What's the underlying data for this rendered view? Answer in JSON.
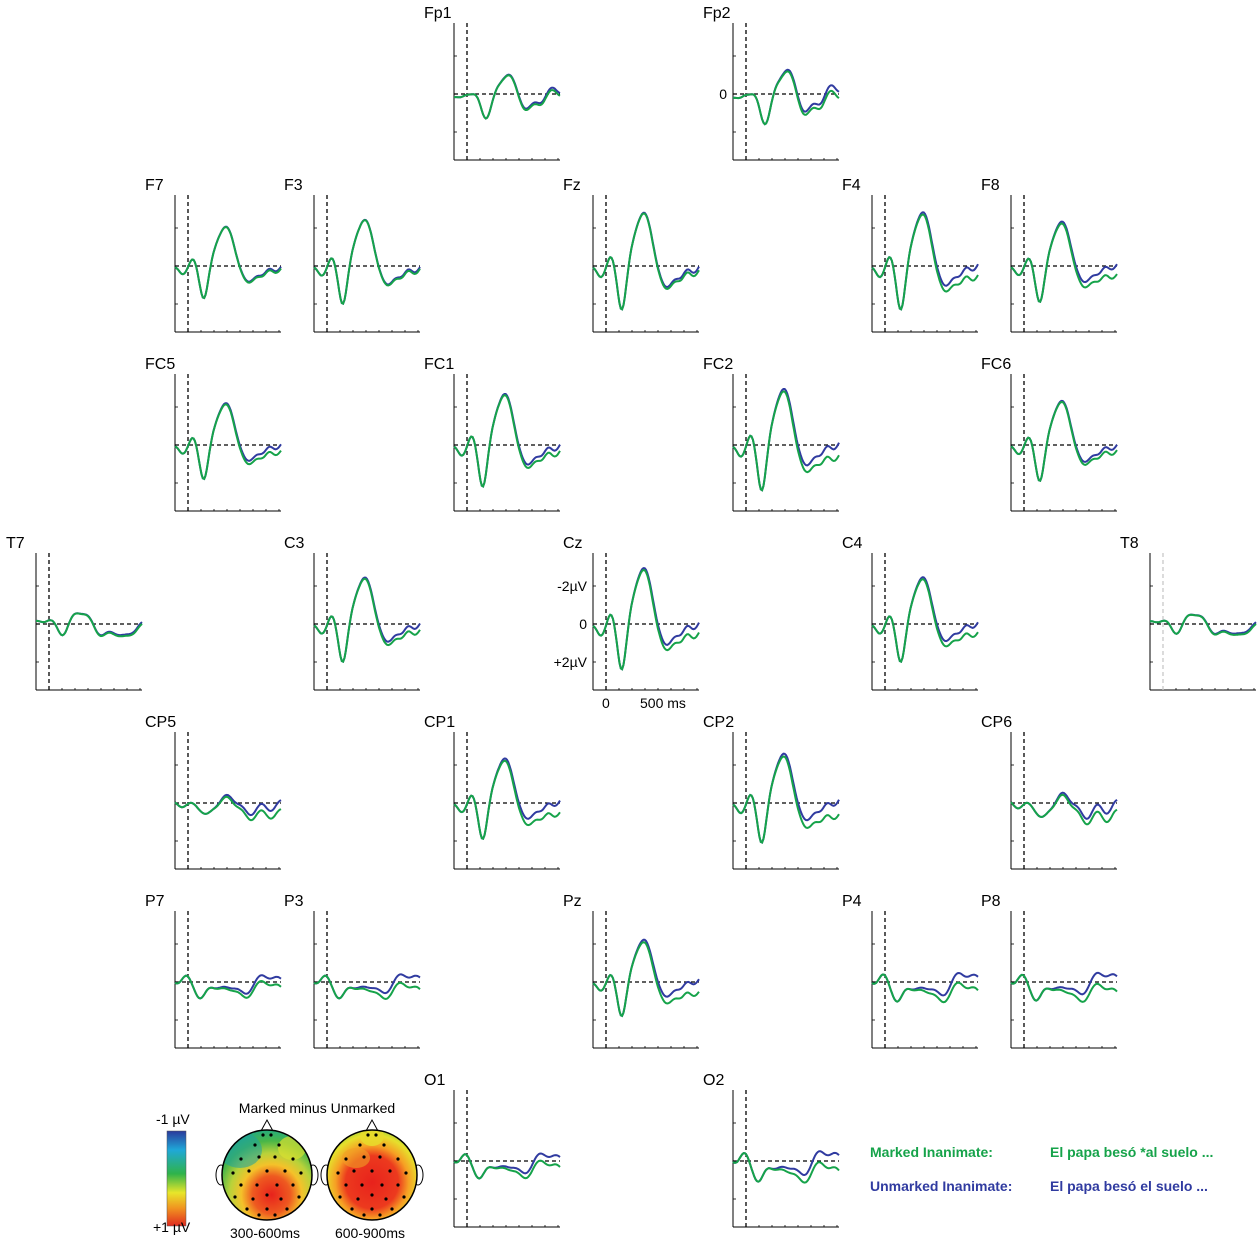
{
  "chart_data": {
    "type": "line",
    "colors": {
      "marked": "#16a34a",
      "unmarked": "#303ba0"
    },
    "series": [
      {
        "key": "marked",
        "name": "Marked Inanimate:",
        "sentence": "El papa besó *al suelo ..."
      },
      {
        "key": "unmarked",
        "name": "Unmarked Inanimate:",
        "sentence": "El papa besó el suelo ..."
      }
    ],
    "axes": {
      "y_ticks": [
        "-2µV",
        "0",
        "+2µV"
      ],
      "y_zero_label": "0",
      "x_ticks": [
        "0",
        "500 ms"
      ],
      "note": "negative up"
    },
    "topomap": {
      "title": "Marked minus Unmarked",
      "scale_top": "-1 µV",
      "scale_bottom": "+1 µV",
      "windows": [
        "300-600ms",
        "600-900ms"
      ]
    },
    "electrodes": [
      {
        "label": "Fp1",
        "shape": "a",
        "amp": 0.85,
        "diff": 0.15
      },
      {
        "label": "Fp2",
        "shape": "a",
        "amp": 1.05,
        "diff": 0.35
      },
      {
        "label": "F7",
        "shape": "b",
        "amp": 0.85,
        "diff": 0.1
      },
      {
        "label": "F3",
        "shape": "b",
        "amp": 1.0,
        "diff": 0.1
      },
      {
        "label": "Fz",
        "shape": "b",
        "amp": 1.15,
        "diff": 0.2
      },
      {
        "label": "F4",
        "shape": "b",
        "amp": 1.15,
        "diff": 0.6
      },
      {
        "label": "F8",
        "shape": "b",
        "amp": 0.95,
        "diff": 0.55
      },
      {
        "label": "FC5",
        "shape": "b",
        "amp": 0.9,
        "diff": 0.35
      },
      {
        "label": "FC1",
        "shape": "b",
        "amp": 1.1,
        "diff": 0.35
      },
      {
        "label": "FC2",
        "shape": "b",
        "amp": 1.2,
        "diff": 0.7
      },
      {
        "label": "FC6",
        "shape": "b",
        "amp": 0.95,
        "diff": 0.3
      },
      {
        "label": "T7",
        "shape": "c",
        "amp": 0.8,
        "diff": 0.1
      },
      {
        "label": "C3",
        "shape": "b",
        "amp": 1.0,
        "diff": 0.35
      },
      {
        "label": "Cz",
        "shape": "b",
        "amp": 1.2,
        "diff": 0.55
      },
      {
        "label": "C4",
        "shape": "b",
        "amp": 1.0,
        "diff": 0.55
      },
      {
        "label": "T8",
        "shape": "c",
        "amp": 0.7,
        "diff": 0.1
      },
      {
        "label": "CP5",
        "shape": "d",
        "amp": 0.7,
        "diff": 0.5
      },
      {
        "label": "CP1",
        "shape": "b",
        "amp": 0.95,
        "diff": 0.65
      },
      {
        "label": "CP2",
        "shape": "b",
        "amp": 1.05,
        "diff": 0.8
      },
      {
        "label": "CP6",
        "shape": "d",
        "amp": 0.9,
        "diff": 0.55
      },
      {
        "label": "P7",
        "shape": "e",
        "amp": 0.75,
        "diff": 0.45
      },
      {
        "label": "P3",
        "shape": "e",
        "amp": 0.75,
        "diff": 0.65
      },
      {
        "label": "Pz",
        "shape": "b",
        "amp": 0.9,
        "diff": 0.7
      },
      {
        "label": "P4",
        "shape": "e",
        "amp": 0.9,
        "diff": 0.75
      },
      {
        "label": "P8",
        "shape": "e",
        "amp": 0.85,
        "diff": 0.85
      },
      {
        "label": "O1",
        "shape": "e",
        "amp": 0.8,
        "diff": 0.55
      },
      {
        "label": "O2",
        "shape": "e",
        "amp": 0.95,
        "diff": 0.85
      }
    ]
  }
}
